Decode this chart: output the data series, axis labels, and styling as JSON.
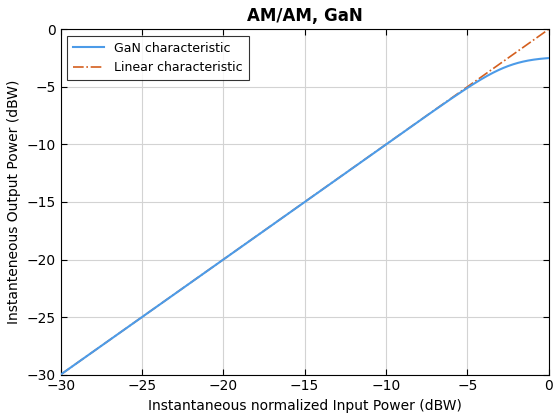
{
  "title": "AM/AM, GaN",
  "xlabel": "Instantaneous normalized Input Power (dBW)",
  "ylabel": "Instanteneous Output Power (dBW)",
  "xlim": [
    -30,
    0
  ],
  "ylim": [
    -30,
    0
  ],
  "xticks": [
    -30,
    -25,
    -20,
    -15,
    -10,
    -5,
    0
  ],
  "yticks": [
    -30,
    -25,
    -20,
    -15,
    -10,
    -5,
    0
  ],
  "gan_color": "#4C9BE8",
  "linear_color": "#D45F1E",
  "gan_linewidth": 1.5,
  "linear_linewidth": 1.2,
  "gan_label": "GaN characteristic",
  "linear_label": "Linear characteristic",
  "background_color": "#FFFFFF",
  "grid_color": "#D3D3D3",
  "x_sat_dB": -1.5,
  "compression_power": 4.0
}
